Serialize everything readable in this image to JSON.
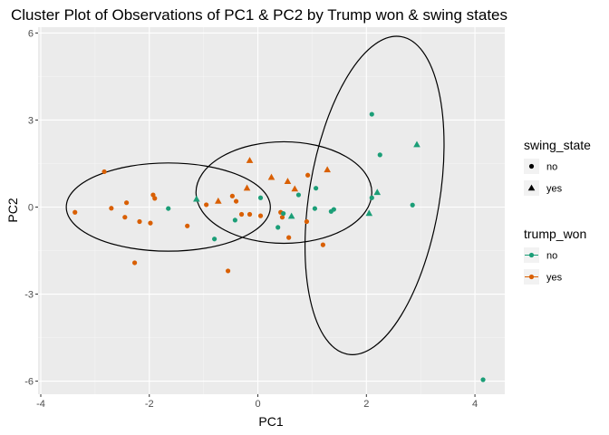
{
  "chart_data": {
    "type": "scatter",
    "title": "Cluster Plot of Observations of PC1 & PC2 by Trump won & swing states",
    "xlabel": "PC1",
    "ylabel": "PC2",
    "xlim": [
      -4.05,
      4.55
    ],
    "ylim": [
      -6.45,
      6.2
    ],
    "x_ticks": [
      -4,
      -2,
      0,
      2,
      4
    ],
    "y_ticks": [
      -6,
      -3,
      0,
      3,
      6
    ],
    "grid": true,
    "colors": {
      "no": "#1b9e77",
      "yes": "#d95f02"
    },
    "legends": [
      {
        "title": "swing_state",
        "kind": "shape",
        "entries": [
          {
            "label": "no",
            "shape": "circle"
          },
          {
            "label": "yes",
            "shape": "triangle"
          }
        ]
      },
      {
        "title": "trump_won",
        "kind": "color",
        "entries": [
          {
            "label": "no",
            "value": "no"
          },
          {
            "label": "yes",
            "value": "yes"
          }
        ]
      }
    ],
    "ellipses": [
      {
        "cx": -1.65,
        "cy": 0.0,
        "rx": 1.88,
        "ry": 1.52,
        "angle_deg": 0
      },
      {
        "cx": 0.48,
        "cy": 0.5,
        "rx": 1.62,
        "ry": 1.75,
        "angle_deg": 0
      },
      {
        "cx": 2.15,
        "cy": 0.4,
        "rx": 1.2,
        "ry": 5.55,
        "angle_deg": 9.5
      }
    ],
    "points": [
      {
        "x": -3.37,
        "y": -0.18,
        "trump_won": "yes",
        "swing_state": "no"
      },
      {
        "x": -2.83,
        "y": 1.22,
        "trump_won": "yes",
        "swing_state": "no"
      },
      {
        "x": -2.7,
        "y": -0.04,
        "trump_won": "yes",
        "swing_state": "no"
      },
      {
        "x": -2.42,
        "y": 0.15,
        "trump_won": "yes",
        "swing_state": "no"
      },
      {
        "x": -2.45,
        "y": -0.35,
        "trump_won": "yes",
        "swing_state": "no"
      },
      {
        "x": -2.18,
        "y": -0.5,
        "trump_won": "yes",
        "swing_state": "no"
      },
      {
        "x": -2.27,
        "y": -1.92,
        "trump_won": "yes",
        "swing_state": "no"
      },
      {
        "x": -1.98,
        "y": -0.55,
        "trump_won": "yes",
        "swing_state": "no"
      },
      {
        "x": -1.93,
        "y": 0.42,
        "trump_won": "yes",
        "swing_state": "no"
      },
      {
        "x": -1.9,
        "y": 0.3,
        "trump_won": "yes",
        "swing_state": "no"
      },
      {
        "x": -1.65,
        "y": -0.05,
        "trump_won": "no",
        "swing_state": "no"
      },
      {
        "x": -1.3,
        "y": -0.65,
        "trump_won": "yes",
        "swing_state": "no"
      },
      {
        "x": -1.13,
        "y": 0.27,
        "trump_won": "no",
        "swing_state": "yes"
      },
      {
        "x": -0.95,
        "y": 0.08,
        "trump_won": "yes",
        "swing_state": "no"
      },
      {
        "x": -0.8,
        "y": -1.1,
        "trump_won": "no",
        "swing_state": "no"
      },
      {
        "x": -0.73,
        "y": 0.2,
        "trump_won": "yes",
        "swing_state": "yes"
      },
      {
        "x": -0.55,
        "y": -2.2,
        "trump_won": "yes",
        "swing_state": "no"
      },
      {
        "x": -0.47,
        "y": 0.38,
        "trump_won": "yes",
        "swing_state": "no"
      },
      {
        "x": -0.42,
        "y": -0.45,
        "trump_won": "no",
        "swing_state": "no"
      },
      {
        "x": -0.4,
        "y": 0.2,
        "trump_won": "yes",
        "swing_state": "no"
      },
      {
        "x": -0.3,
        "y": -0.25,
        "trump_won": "yes",
        "swing_state": "no"
      },
      {
        "x": -0.2,
        "y": 0.65,
        "trump_won": "yes",
        "swing_state": "yes"
      },
      {
        "x": -0.15,
        "y": 1.6,
        "trump_won": "yes",
        "swing_state": "yes"
      },
      {
        "x": -0.15,
        "y": -0.25,
        "trump_won": "yes",
        "swing_state": "no"
      },
      {
        "x": 0.05,
        "y": 0.32,
        "trump_won": "no",
        "swing_state": "no"
      },
      {
        "x": 0.05,
        "y": -0.3,
        "trump_won": "yes",
        "swing_state": "no"
      },
      {
        "x": 0.25,
        "y": 1.02,
        "trump_won": "yes",
        "swing_state": "yes"
      },
      {
        "x": 0.37,
        "y": -0.7,
        "trump_won": "no",
        "swing_state": "no"
      },
      {
        "x": 0.42,
        "y": -0.18,
        "trump_won": "yes",
        "swing_state": "no"
      },
      {
        "x": 0.45,
        "y": -0.35,
        "trump_won": "yes",
        "swing_state": "no"
      },
      {
        "x": 0.47,
        "y": -0.22,
        "trump_won": "no",
        "swing_state": "no"
      },
      {
        "x": 0.55,
        "y": 0.88,
        "trump_won": "yes",
        "swing_state": "yes"
      },
      {
        "x": 0.57,
        "y": -1.05,
        "trump_won": "yes",
        "swing_state": "no"
      },
      {
        "x": 0.62,
        "y": -0.32,
        "trump_won": "no",
        "swing_state": "yes"
      },
      {
        "x": 0.68,
        "y": 0.62,
        "trump_won": "yes",
        "swing_state": "yes"
      },
      {
        "x": 0.75,
        "y": 0.42,
        "trump_won": "no",
        "swing_state": "no"
      },
      {
        "x": 0.9,
        "y": -0.5,
        "trump_won": "yes",
        "swing_state": "no"
      },
      {
        "x": 0.92,
        "y": 1.1,
        "trump_won": "yes",
        "swing_state": "no"
      },
      {
        "x": 1.05,
        "y": -0.05,
        "trump_won": "no",
        "swing_state": "no"
      },
      {
        "x": 1.07,
        "y": 0.65,
        "trump_won": "no",
        "swing_state": "no"
      },
      {
        "x": 1.2,
        "y": -1.3,
        "trump_won": "yes",
        "swing_state": "no"
      },
      {
        "x": 1.28,
        "y": 1.28,
        "trump_won": "yes",
        "swing_state": "yes"
      },
      {
        "x": 1.35,
        "y": -0.15,
        "trump_won": "no",
        "swing_state": "no"
      },
      {
        "x": 1.4,
        "y": -0.08,
        "trump_won": "no",
        "swing_state": "no"
      },
      {
        "x": 2.05,
        "y": -0.22,
        "trump_won": "no",
        "swing_state": "yes"
      },
      {
        "x": 2.1,
        "y": 3.2,
        "trump_won": "no",
        "swing_state": "no"
      },
      {
        "x": 2.1,
        "y": 0.32,
        "trump_won": "no",
        "swing_state": "no"
      },
      {
        "x": 2.2,
        "y": 0.5,
        "trump_won": "no",
        "swing_state": "yes"
      },
      {
        "x": 2.25,
        "y": 1.8,
        "trump_won": "no",
        "swing_state": "no"
      },
      {
        "x": 2.85,
        "y": 0.07,
        "trump_won": "no",
        "swing_state": "no"
      },
      {
        "x": 2.93,
        "y": 2.15,
        "trump_won": "no",
        "swing_state": "yes"
      },
      {
        "x": 4.15,
        "y": -5.95,
        "trump_won": "no",
        "swing_state": "no"
      }
    ]
  }
}
